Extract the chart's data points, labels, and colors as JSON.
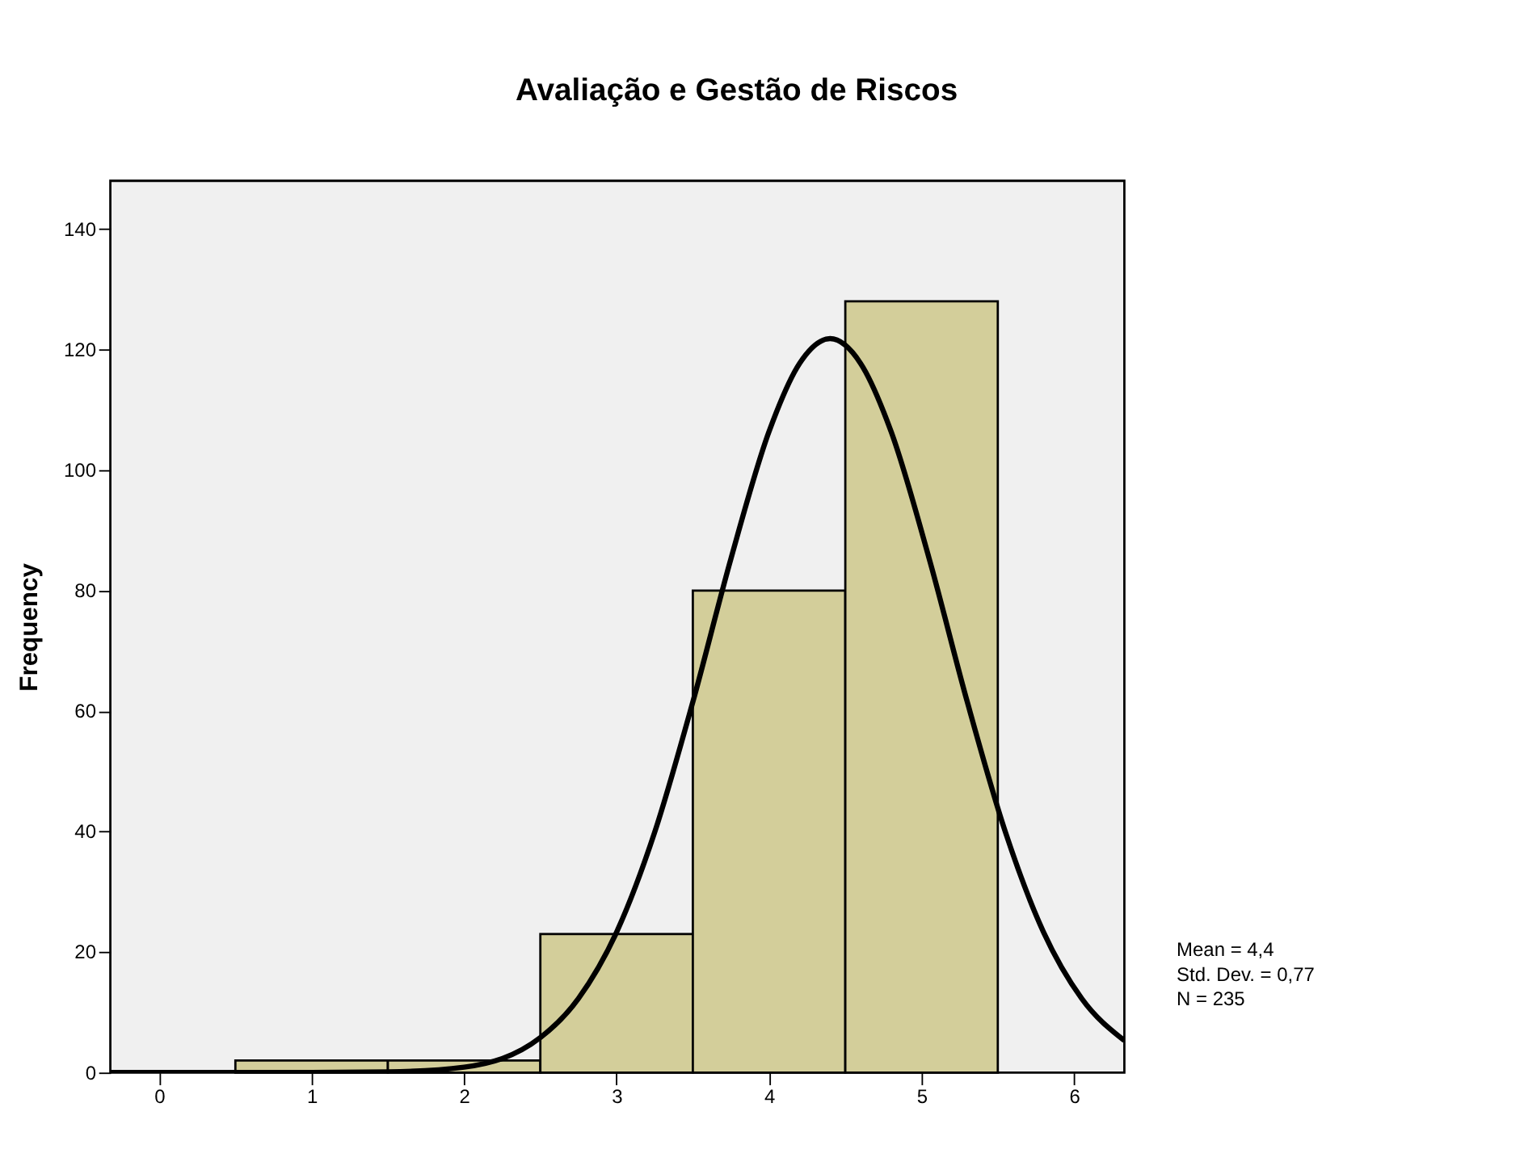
{
  "chart_data": {
    "type": "histogram",
    "title": "Avaliação e Gestão de Riscos",
    "ylabel": "Frequency",
    "bins": [
      0.5,
      1.5,
      2.5,
      3.5,
      4.5,
      5.5
    ],
    "values": [
      2,
      2,
      23,
      80,
      128
    ],
    "color": "#d3ce9a",
    "series": [
      {
        "type": "line",
        "color": "#000000",
        "x": [
          -0.32,
          0,
          1,
          1.5,
          2,
          2.5,
          2.75,
          3,
          3.25,
          3.5,
          3.75,
          4,
          4.2,
          4.4,
          4.6,
          4.8,
          5.05,
          5.3,
          5.55,
          5.8,
          6.05,
          6.33
        ],
        "values": [
          0,
          0,
          0,
          0.1,
          0.9,
          5.8,
          12.3,
          23.3,
          39.9,
          61.5,
          85.3,
          106.4,
          117.7,
          121.8,
          117.7,
          106.4,
          85.3,
          61.5,
          39.9,
          23.3,
          12.3,
          5.3
        ]
      }
    ],
    "xlim": [
      -0.32,
      6.33
    ],
    "ylim": [
      0,
      148
    ],
    "xticks": [
      0,
      1,
      2,
      3,
      4,
      5,
      6
    ],
    "yticks": [
      0,
      20,
      40,
      60,
      80,
      100,
      120,
      140
    ],
    "grid": false,
    "annotations": [
      "Mean = 4,4",
      "Std. Dev. = 0,77",
      "N = 235"
    ]
  }
}
